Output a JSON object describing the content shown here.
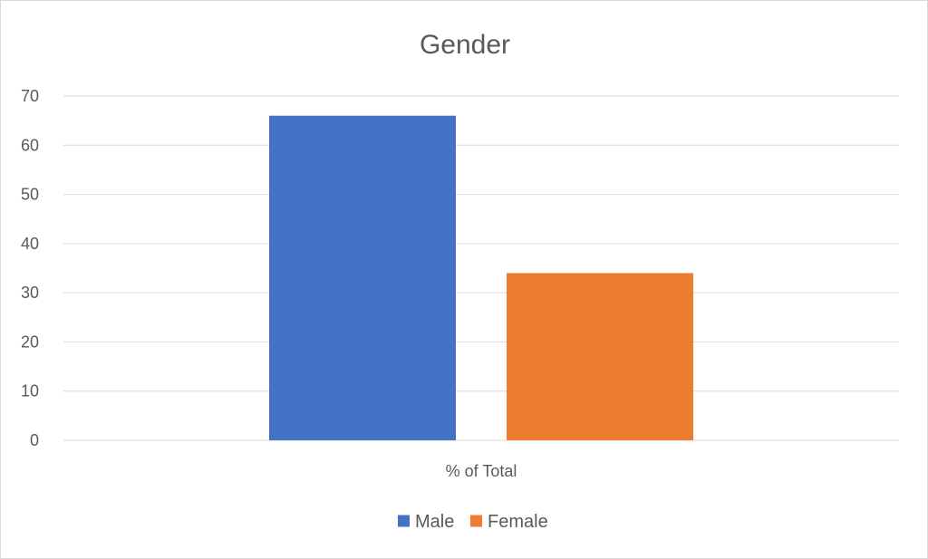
{
  "chart_data": {
    "type": "bar",
    "title": "Gender",
    "categories": [
      "% of Total"
    ],
    "series": [
      {
        "name": "Male",
        "values": [
          66
        ],
        "color": "#4472C4"
      },
      {
        "name": "Female",
        "values": [
          34
        ],
        "color": "#ED7D31"
      }
    ],
    "ylim": [
      0,
      70
    ],
    "yticks": [
      "0",
      "10",
      "20",
      "30",
      "40",
      "50",
      "60",
      "70"
    ],
    "grid": true,
    "legend": "bottom"
  }
}
